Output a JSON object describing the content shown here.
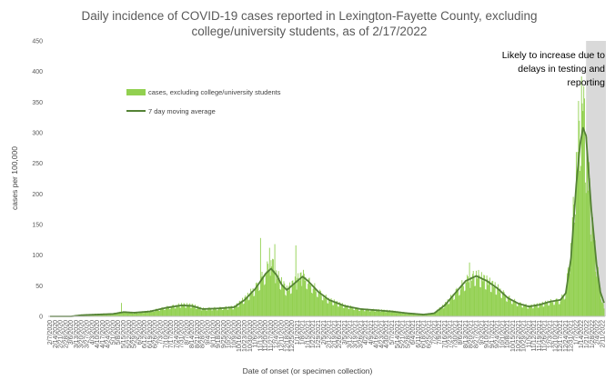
{
  "chart_data": {
    "type": "bar",
    "title_line1": "Daily incidence of COVID-19 cases reported in Lexington-Fayette County, excluding",
    "title_line2": "college/university students, as of 2/17/2022",
    "xlabel": "Date of onset (or specimen collection)",
    "ylabel": "cases per 100,000",
    "ylim": [
      0,
      450
    ],
    "yticks": [
      0,
      50,
      100,
      150,
      200,
      250,
      300,
      350,
      400,
      450
    ],
    "grid": false,
    "legend_position": "upper-left",
    "annotation_lines": [
      "Likely to increase due to",
      "delays in testing and",
      "reporting"
    ],
    "x_start": "2/7/2020",
    "x_end": "2/13/2022",
    "tick_every_days": 7,
    "shaded_region": {
      "from": "1/20/2022",
      "to": "2/13/2022"
    },
    "series": [
      {
        "name": "cases, excluding college/university students",
        "kind": "bar",
        "color": "#92d050",
        "anchors": [
          [
            "2/7/2020",
            0
          ],
          [
            "3/6/2020",
            0
          ],
          [
            "3/20/2020",
            2
          ],
          [
            "4/10/2020",
            4
          ],
          [
            "5/1/2020",
            5
          ],
          [
            "5/15/2020",
            8
          ],
          [
            "5/29/2020",
            6
          ],
          [
            "6/19/2020",
            9
          ],
          [
            "7/10/2020",
            15
          ],
          [
            "7/31/2020",
            20
          ],
          [
            "8/14/2020",
            19
          ],
          [
            "8/28/2020",
            13
          ],
          [
            "9/18/2020",
            14
          ],
          [
            "10/9/2020",
            16
          ],
          [
            "10/23/2020",
            30
          ],
          [
            "11/6/2020",
            48
          ],
          [
            "11/20/2020",
            75
          ],
          [
            "11/27/2020",
            95
          ],
          [
            "12/4/2020",
            72
          ],
          [
            "12/11/2020",
            58
          ],
          [
            "12/18/2020",
            45
          ],
          [
            "1/1/2021",
            62
          ],
          [
            "1/8/2021",
            70
          ],
          [
            "1/15/2021",
            60
          ],
          [
            "1/29/2021",
            42
          ],
          [
            "2/12/2021",
            28
          ],
          [
            "3/5/2021",
            18
          ],
          [
            "3/26/2021",
            12
          ],
          [
            "4/16/2021",
            11
          ],
          [
            "5/7/2021",
            9
          ],
          [
            "5/28/2021",
            5
          ],
          [
            "6/18/2021",
            3
          ],
          [
            "7/2/2021",
            6
          ],
          [
            "7/16/2021",
            20
          ],
          [
            "7/30/2021",
            40
          ],
          [
            "8/13/2021",
            60
          ],
          [
            "8/27/2021",
            70
          ],
          [
            "9/10/2021",
            60
          ],
          [
            "9/24/2021",
            48
          ],
          [
            "10/8/2021",
            32
          ],
          [
            "10/22/2021",
            22
          ],
          [
            "11/5/2021",
            17
          ],
          [
            "11/19/2021",
            20
          ],
          [
            "12/3/2021",
            25
          ],
          [
            "12/17/2021",
            28
          ],
          [
            "12/24/2021",
            42
          ],
          [
            "12/31/2021",
            120
          ],
          [
            "1/7/2022",
            250
          ],
          [
            "1/12/2022",
            330
          ],
          [
            "1/16/2022",
            375
          ],
          [
            "1/20/2022",
            280
          ],
          [
            "1/27/2022",
            170
          ],
          [
            "2/3/2022",
            90
          ],
          [
            "2/8/2022",
            45
          ],
          [
            "2/13/2022",
            12
          ]
        ],
        "spikes": [
          [
            "5/12/2020",
            22
          ],
          [
            "11/13/2020",
            128
          ],
          [
            "11/25/2020",
            112
          ],
          [
            "12/2/2020",
            118
          ],
          [
            "12/30/2020",
            116
          ],
          [
            "1/6/2021",
            72
          ],
          [
            "8/18/2021",
            88
          ],
          [
            "1/10/2022",
            352
          ],
          [
            "1/14/2022",
            392
          ],
          [
            "1/18/2022",
            356
          ],
          [
            "1/24/2022",
            252
          ]
        ]
      },
      {
        "name": "7 day moving average",
        "kind": "line",
        "color": "#548235",
        "anchors": [
          [
            "2/7/2020",
            0
          ],
          [
            "3/6/2020",
            0
          ],
          [
            "3/20/2020",
            2
          ],
          [
            "4/10/2020",
            3
          ],
          [
            "5/1/2020",
            4
          ],
          [
            "5/15/2020",
            7
          ],
          [
            "5/29/2020",
            6
          ],
          [
            "6/19/2020",
            8
          ],
          [
            "7/10/2020",
            14
          ],
          [
            "7/31/2020",
            18
          ],
          [
            "8/14/2020",
            17
          ],
          [
            "8/28/2020",
            12
          ],
          [
            "9/18/2020",
            13
          ],
          [
            "10/9/2020",
            15
          ],
          [
            "10/23/2020",
            27
          ],
          [
            "11/6/2020",
            45
          ],
          [
            "11/20/2020",
            70
          ],
          [
            "11/27/2020",
            78
          ],
          [
            "12/4/2020",
            68
          ],
          [
            "12/11/2020",
            52
          ],
          [
            "12/18/2020",
            43
          ],
          [
            "1/1/2021",
            58
          ],
          [
            "1/8/2021",
            65
          ],
          [
            "1/15/2021",
            58
          ],
          [
            "1/29/2021",
            40
          ],
          [
            "2/12/2021",
            27
          ],
          [
            "3/5/2021",
            17
          ],
          [
            "3/26/2021",
            12
          ],
          [
            "4/16/2021",
            10
          ],
          [
            "5/7/2021",
            8
          ],
          [
            "5/28/2021",
            5
          ],
          [
            "6/18/2021",
            3
          ],
          [
            "7/2/2021",
            5
          ],
          [
            "7/16/2021",
            18
          ],
          [
            "7/30/2021",
            38
          ],
          [
            "8/13/2021",
            58
          ],
          [
            "8/27/2021",
            66
          ],
          [
            "9/10/2021",
            58
          ],
          [
            "9/24/2021",
            46
          ],
          [
            "10/8/2021",
            30
          ],
          [
            "10/22/2021",
            21
          ],
          [
            "11/5/2021",
            16
          ],
          [
            "11/19/2021",
            19
          ],
          [
            "12/3/2021",
            24
          ],
          [
            "12/17/2021",
            27
          ],
          [
            "12/24/2021",
            38
          ],
          [
            "12/31/2021",
            95
          ],
          [
            "1/7/2022",
            215
          ],
          [
            "1/12/2022",
            280
          ],
          [
            "1/16/2022",
            308
          ],
          [
            "1/20/2022",
            295
          ],
          [
            "1/27/2022",
            175
          ],
          [
            "2/3/2022",
            85
          ],
          [
            "2/8/2022",
            40
          ],
          [
            "2/13/2022",
            22
          ]
        ]
      }
    ]
  }
}
